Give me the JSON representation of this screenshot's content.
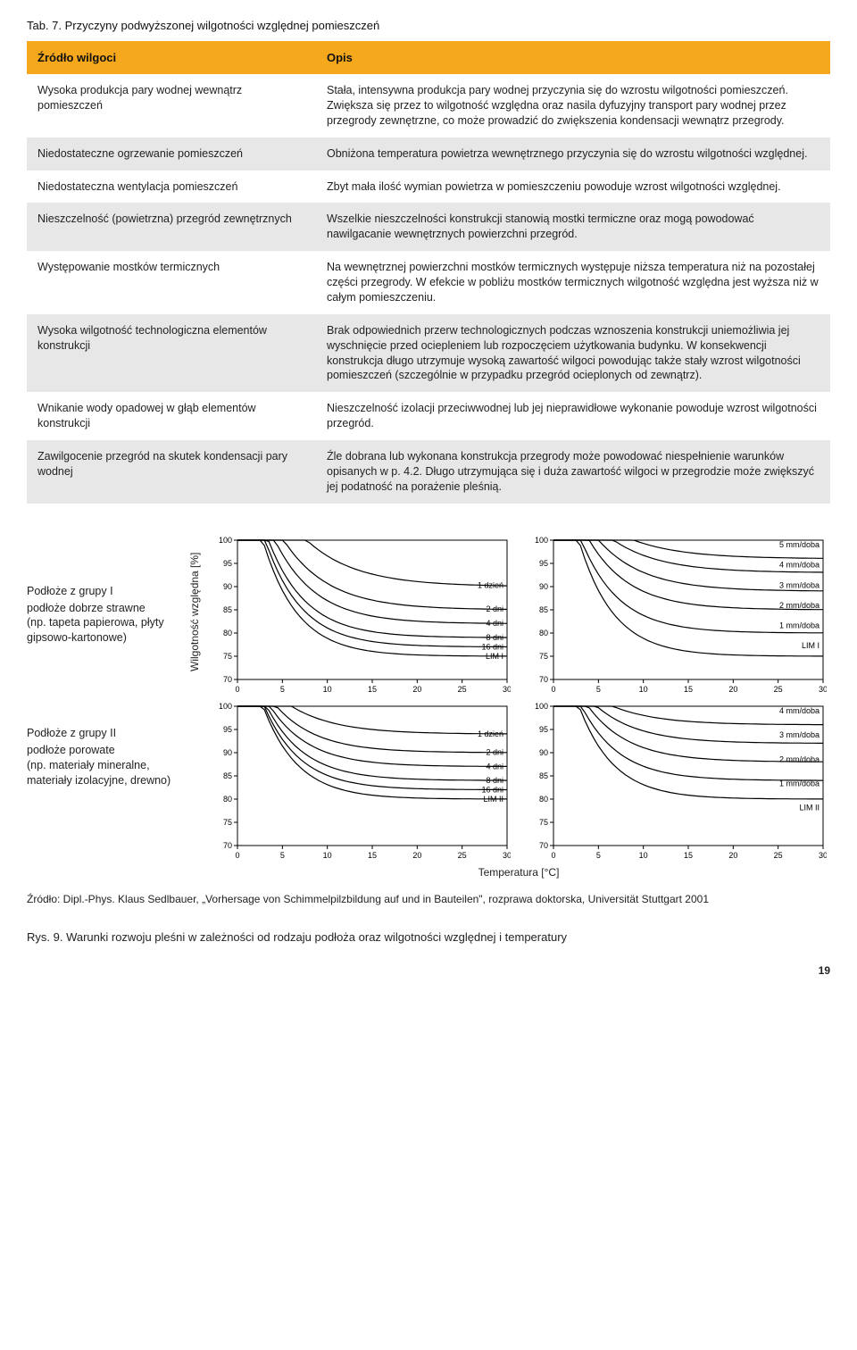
{
  "table": {
    "title": "Tab. 7. Przyczyny podwyższonej wilgotności względnej pomieszczeń",
    "headers": {
      "source": "Źródło wilgoci",
      "desc": "Opis"
    },
    "rows": [
      {
        "source": "Wysoka produkcja pary wodnej wewnątrz pomieszczeń",
        "desc": "Stała, intensywna produkcja pary wodnej przyczynia się do wzrostu wilgotności pomieszczeń. Zwiększa się przez to wilgotność względna oraz nasila dyfuzyjny transport pary wodnej przez przegrody zewnętrzne, co może prowadzić do zwiększenia kondensacji wewnątrz przegrody."
      },
      {
        "source": "Niedostateczne ogrzewanie pomieszczeń",
        "desc": "Obniżona temperatura powietrza wewnętrznego przyczynia się do wzrostu wilgotności względnej."
      },
      {
        "source": "Niedostateczna wentylacja pomieszczeń",
        "desc": "Zbyt mała ilość wymian powietrza w pomieszczeniu powoduje wzrost wilgotności względnej."
      },
      {
        "source": "Nieszczelność (powietrzna) przegród zewnętrznych",
        "desc": "Wszelkie nieszczelności konstrukcji stanowią mostki termiczne oraz mogą powodować nawilgacanie wewnętrznych powierzchni przegród."
      },
      {
        "source": "Występowanie mostków termicznych",
        "desc": "Na wewnętrznej powierzchni mostków termicznych występuje niższa temperatura niż na pozostałej części przegrody. W efekcie w pobliżu mostków termicznych wilgotność względna jest wyższa niż w całym pomieszczeniu."
      },
      {
        "source": "Wysoka wilgotność technologiczna elementów konstrukcji",
        "desc": "Brak odpowiednich przerw technologicznych podczas wznoszenia konstrukcji uniemożliwia jej wyschnięcie przed ociepleniem lub rozpoczęciem użytkowania budynku. W konsekwencji konstrukcja długo utrzymuje wysoką zawartość wilgoci powodując także stały wzrost wilgotności pomieszczeń (szczególnie w przypadku przegród ocieplonych od zewnątrz)."
      },
      {
        "source": "Wnikanie wody opadowej w głąb elementów konstrukcji",
        "desc": "Nieszczelność izolacji przeciwwodnej lub jej nieprawidłowe wykonanie powoduje wzrost wilgotności przegród."
      },
      {
        "source": "Zawilgocenie przegród na skutek kondensacji pary wodnej",
        "desc": "Źle dobrana lub wykonana konstrukcja przegrody może powodować niespełnienie warunków opisanych w p. 4.2. Długo utrzymująca się i duża zawartość wilgoci w przegrodzie może zwiększyć jej podatność na porażenie pleśnią."
      }
    ]
  },
  "groups": [
    {
      "title": "Podłoże z grupy I",
      "sub": "podłoże dobrze strawne",
      "example": "(np. tapeta papierowa, płyty gipsowo-kartonowe)"
    },
    {
      "title": "Podłoże z grupy II",
      "sub": "podłoże porowate",
      "example": "(np. materiały mineralne, materiały izolacyjne, drewno)"
    }
  ],
  "axis": {
    "ylabel": "Wilgotność względna [%]",
    "xlabel": "Temperatura [°C]",
    "xlim": [
      0,
      30
    ],
    "xtick_step": 5,
    "ylim": [
      70,
      100
    ],
    "ytick_step": 5
  },
  "chart_style": {
    "line_color": "#000000",
    "line_width": 1.2,
    "axis_color": "#000000",
    "bg": "#ffffff",
    "font_size_tick": 9,
    "font_size_annot": 9
  },
  "panels": [
    {
      "id": "TL",
      "lim_label": "LIM I",
      "curve_labels": [
        "1 dzień",
        "2 dni",
        "4 dni",
        "8 dni",
        "16 dni",
        "LIM I"
      ],
      "curves": [
        {
          "asym": 90,
          "drop": 40,
          "k": 0.18
        },
        {
          "asym": 85,
          "drop": 42,
          "k": 0.2
        },
        {
          "asym": 82,
          "drop": 45,
          "k": 0.22
        },
        {
          "asym": 79,
          "drop": 48,
          "k": 0.24
        },
        {
          "asym": 77,
          "drop": 50,
          "k": 0.25
        },
        {
          "asym": 75,
          "drop": 52,
          "k": 0.26
        }
      ]
    },
    {
      "id": "TR",
      "lim_label": "LIM I",
      "curve_labels": [
        "5 mm/doba",
        "4 mm/doba",
        "3 mm/doba",
        "2 mm/doba",
        "1 mm/doba",
        "LIM I"
      ],
      "curves": [
        {
          "asym": 96,
          "drop": 20,
          "k": 0.18
        },
        {
          "asym": 93,
          "drop": 25,
          "k": 0.19
        },
        {
          "asym": 89,
          "drop": 30,
          "k": 0.2
        },
        {
          "asym": 85,
          "drop": 36,
          "k": 0.22
        },
        {
          "asym": 80,
          "drop": 42,
          "k": 0.24
        },
        {
          "asym": 75,
          "drop": 52,
          "k": 0.26
        }
      ]
    },
    {
      "id": "BL",
      "lim_label": "LIM II",
      "curve_labels": [
        "1 dzień",
        "2 dni",
        "4 dni",
        "8 dni",
        "16 dni",
        "LIM II"
      ],
      "curves": [
        {
          "asym": 94,
          "drop": 20,
          "k": 0.2
        },
        {
          "asym": 90,
          "drop": 26,
          "k": 0.22
        },
        {
          "asym": 87,
          "drop": 30,
          "k": 0.23
        },
        {
          "asym": 84,
          "drop": 35,
          "k": 0.24
        },
        {
          "asym": 82,
          "drop": 38,
          "k": 0.25
        },
        {
          "asym": 80,
          "drop": 42,
          "k": 0.26
        }
      ]
    },
    {
      "id": "BR",
      "lim_label": "LIM II",
      "curve_labels": [
        "4 mm/doba",
        "3 mm/doba",
        "2 mm/doba",
        "1 mm/doba",
        "LIM II"
      ],
      "curves": [
        {
          "asym": 96,
          "drop": 15,
          "k": 0.2
        },
        {
          "asym": 92,
          "drop": 22,
          "k": 0.21
        },
        {
          "asym": 88,
          "drop": 28,
          "k": 0.22
        },
        {
          "asym": 84,
          "drop": 34,
          "k": 0.24
        },
        {
          "asym": 80,
          "drop": 42,
          "k": 0.26
        }
      ]
    }
  ],
  "source_text": "Źródło: Dipl.-Phys. Klaus Sedlbauer, „Vorhersage von Schimmelpilzbildung auf und in Bauteilen\", rozprawa doktorska, Universität Stuttgart 2001",
  "fig_caption": "Rys. 9. Warunki rozwoju pleśni w zależności od rodzaju podłoża oraz wilgotności względnej i temperatury",
  "page_number": "19"
}
